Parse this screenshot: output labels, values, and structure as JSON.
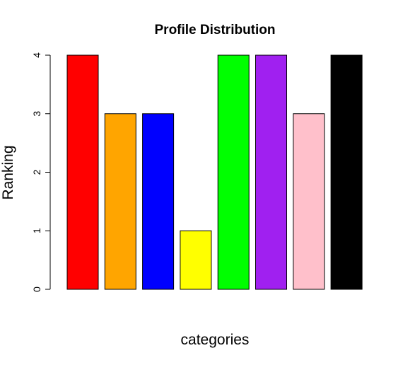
{
  "chart_data": {
    "type": "bar",
    "title": "Profile Distribution",
    "xlabel": "categories",
    "ylabel": "Ranking",
    "categories": [
      "",
      "",
      "",
      "",
      "",
      "",
      "",
      ""
    ],
    "values": [
      4,
      3,
      3,
      1,
      4,
      4,
      3,
      4
    ],
    "colors": [
      "#ff0000",
      "#ffa500",
      "#0000ff",
      "#ffff00",
      "#00ff00",
      "#a020f0",
      "#ffc0cb",
      "#000000"
    ],
    "ylim": [
      0,
      4
    ],
    "yticks": [
      "0",
      "1",
      "2",
      "3",
      "4"
    ],
    "grid": false,
    "legend": "none"
  }
}
